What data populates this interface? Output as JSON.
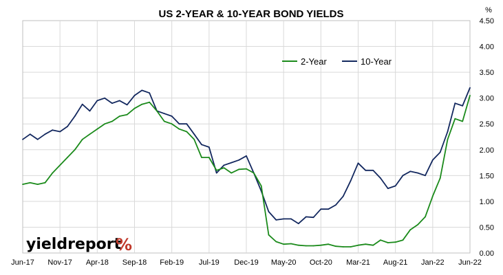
{
  "chart_data": {
    "type": "line",
    "title": "US 2-YEAR & 10-YEAR BOND YIELDS",
    "ylabel": "%",
    "xlabel": "",
    "ylim": [
      0,
      4.5
    ],
    "yticks": [
      "0.00",
      "0.50",
      "1.00",
      "1.50",
      "2.00",
      "2.50",
      "3.00",
      "3.50",
      "4.00",
      "4.50"
    ],
    "x_tick_labels": [
      "Jun-17",
      "Nov-17",
      "Apr-18",
      "Sep-18",
      "Feb-19",
      "Jul-19",
      "Dec-19",
      "May-20",
      "Oct-20",
      "Mar-21",
      "Aug-21",
      "Jan-22",
      "Jun-22"
    ],
    "grid": true,
    "legend_position": "top-right",
    "x": [
      "Jun-17",
      "Jul-17",
      "Aug-17",
      "Sep-17",
      "Oct-17",
      "Nov-17",
      "Dec-17",
      "Jan-18",
      "Feb-18",
      "Mar-18",
      "Apr-18",
      "May-18",
      "Jun-18",
      "Jul-18",
      "Aug-18",
      "Sep-18",
      "Oct-18",
      "Nov-18",
      "Dec-18",
      "Jan-19",
      "Feb-19",
      "Mar-19",
      "Apr-19",
      "May-19",
      "Jun-19",
      "Jul-19",
      "Aug-19",
      "Sep-19",
      "Oct-19",
      "Nov-19",
      "Dec-19",
      "Jan-20",
      "Feb-20",
      "Mar-20",
      "Apr-20",
      "May-20",
      "Jun-20",
      "Jul-20",
      "Aug-20",
      "Sep-20",
      "Oct-20",
      "Nov-20",
      "Dec-20",
      "Jan-21",
      "Feb-21",
      "Mar-21",
      "Apr-21",
      "May-21",
      "Jun-21",
      "Jul-21",
      "Aug-21",
      "Sep-21",
      "Oct-21",
      "Nov-21",
      "Dec-21",
      "Jan-22",
      "Feb-22",
      "Mar-22",
      "Apr-22",
      "May-22",
      "Jun-22"
    ],
    "series": [
      {
        "name": "2-Year",
        "color": "#1a8a1a",
        "values": [
          1.33,
          1.36,
          1.33,
          1.36,
          1.55,
          1.7,
          1.85,
          2.0,
          2.2,
          2.3,
          2.4,
          2.5,
          2.55,
          2.65,
          2.68,
          2.8,
          2.88,
          2.92,
          2.75,
          2.55,
          2.5,
          2.4,
          2.35,
          2.2,
          1.85,
          1.85,
          1.6,
          1.65,
          1.55,
          1.62,
          1.63,
          1.55,
          1.3,
          0.35,
          0.22,
          0.17,
          0.18,
          0.15,
          0.14,
          0.14,
          0.15,
          0.17,
          0.13,
          0.12,
          0.12,
          0.15,
          0.17,
          0.15,
          0.25,
          0.2,
          0.21,
          0.25,
          0.45,
          0.55,
          0.7,
          1.1,
          1.45,
          2.2,
          2.6,
          2.55,
          3.05
        ]
      },
      {
        "name": "10-Year",
        "color": "#12275e",
        "values": [
          2.2,
          2.3,
          2.2,
          2.3,
          2.38,
          2.35,
          2.45,
          2.65,
          2.88,
          2.75,
          2.95,
          3.0,
          2.9,
          2.95,
          2.87,
          3.05,
          3.15,
          3.1,
          2.75,
          2.7,
          2.65,
          2.5,
          2.5,
          2.3,
          2.1,
          2.05,
          1.55,
          1.7,
          1.75,
          1.8,
          1.88,
          1.55,
          1.2,
          0.8,
          0.64,
          0.66,
          0.66,
          0.57,
          0.7,
          0.69,
          0.85,
          0.85,
          0.93,
          1.1,
          1.4,
          1.74,
          1.6,
          1.6,
          1.45,
          1.25,
          1.3,
          1.5,
          1.58,
          1.55,
          1.5,
          1.8,
          1.95,
          2.35,
          2.9,
          2.85,
          3.2
        ]
      }
    ]
  },
  "logo": {
    "text": "yieldreport",
    "symbol": "%"
  }
}
